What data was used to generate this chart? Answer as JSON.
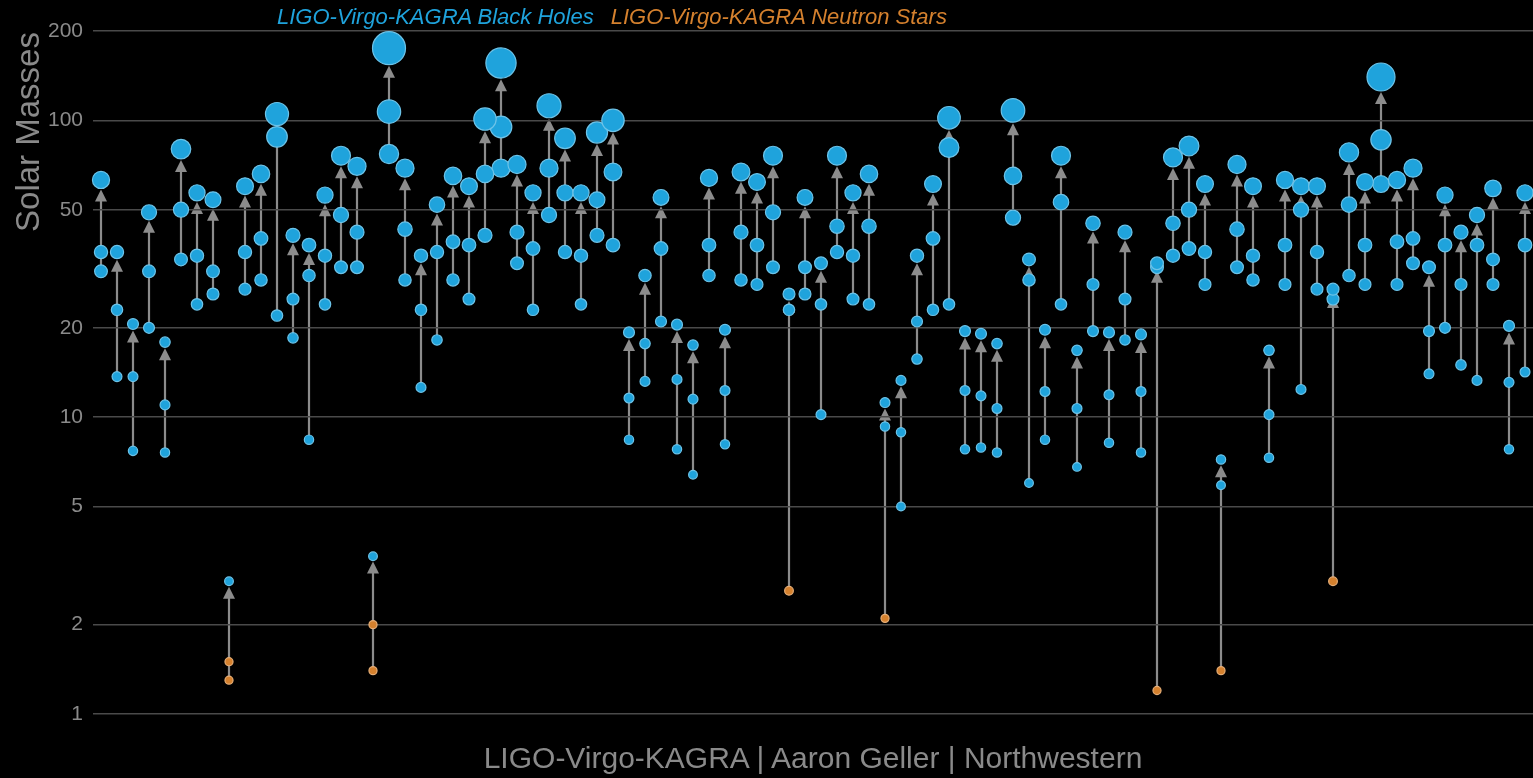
{
  "chart_data": {
    "type": "bubble",
    "ylabel": "Solar Masses",
    "annotations": [
      "LIGO-Virgo-KAGRA | Aaron Geller | Northwestern"
    ],
    "categories": [
      null,
      null,
      null,
      null,
      null,
      null,
      null,
      null,
      null,
      null,
      null,
      null,
      null,
      null,
      null,
      null,
      null,
      null,
      null,
      null,
      null,
      null,
      null,
      null,
      null,
      null,
      null,
      null,
      null,
      null,
      null,
      null,
      null,
      null,
      null,
      null,
      null,
      null,
      null,
      null,
      null,
      null,
      null,
      null,
      null,
      null,
      null,
      null,
      null,
      null,
      null,
      null,
      null,
      null,
      null,
      null,
      null,
      null,
      null,
      null,
      null,
      null,
      null,
      null,
      null,
      null,
      null,
      null,
      null,
      null,
      null,
      null,
      null,
      null,
      null,
      null,
      null,
      null,
      null,
      null,
      null,
      null,
      null,
      null,
      null,
      null,
      null,
      null,
      null,
      null
    ],
    "ylim": [
      1,
      200
    ],
    "yticks": [
      1,
      2,
      5,
      10,
      20,
      50,
      100,
      200
    ],
    "log": "y",
    "grid": "y",
    "legend": "top",
    "tick_labels": "y",
    "marker": "circle",
    "series": [
      {
        "name": "LIGO-Virgo-KAGRA Black Holes",
        "color": "#1fa3dc",
        "values": [
          63,
          36,
          20.6,
          49,
          17.9,
          80,
          57,
          54,
          2.8,
          60,
          66,
          105,
          41,
          38,
          56,
          76,
          70,
          3.4,
          175,
          69,
          35,
          52,
          65,
          60,
          101,
          156,
          71,
          57,
          112,
          87,
          57,
          91,
          100,
          19.3,
          30,
          55,
          20.5,
          17.5,
          64,
          19.7,
          67,
          62,
          76,
          26,
          55,
          33,
          76,
          57,
          66,
          11.2,
          13.3,
          35,
          61,
          102,
          19.5,
          19.1,
          17.7,
          108,
          34,
          19.7,
          76,
          16.8,
          45,
          19.3,
          42,
          19.0,
          33,
          75,
          82,
          61,
          7.2,
          71,
          60,
          16.8,
          63,
          60,
          60,
          27,
          78,
          62,
          140,
          63,
          69,
          32,
          56,
          42,
          48,
          59,
          20.3,
          57
        ],
        "sizes": [
          0.27,
          0.16,
          0.11,
          0.21,
          0.1,
          0.35,
          0.24,
          0.23,
          0.07,
          0.26,
          0.28,
          0.49,
          0.18,
          0.17,
          0.24,
          0.33,
          0.3,
          0.07,
          1,
          0.3,
          0.16,
          0.22,
          0.28,
          0.26,
          0.46,
          0.84,
          0.3,
          0.24,
          0.53,
          0.39,
          0.24,
          0.41,
          0.46,
          0.11,
          0.14,
          0.23,
          0.11,
          0.1,
          0.27,
          0.11,
          0.29,
          0.26,
          0.33,
          0.13,
          0.23,
          0.15,
          0.33,
          0.24,
          0.28,
          0.09,
          0.09,
          0.16,
          0.26,
          0.47,
          0.11,
          0.11,
          0.1,
          0.51,
          0.15,
          0.11,
          0.33,
          0.1,
          0.19,
          0.11,
          0.18,
          0.11,
          0.15,
          0.33,
          0.36,
          0.26,
          0.08,
          0.3,
          0.26,
          0.1,
          0.27,
          0.26,
          0.26,
          0.13,
          0.34,
          0.26,
          0.72,
          0.27,
          0.3,
          0.15,
          0.24,
          0.18,
          0.21,
          0.25,
          0.11,
          0.24
        ]
      },
      {
        "color": "#1fa3dc",
        "values": [
          36,
          23,
          13.7,
          31,
          11.0,
          50,
          35,
          31,
          null,
          36,
          40,
          88,
          25,
          30,
          35,
          48,
          42,
          null,
          107,
          43,
          23,
          36,
          39,
          38,
          66,
          95,
          42,
          37,
          69,
          57,
          35,
          54,
          67,
          11.6,
          17.7,
          37,
          13.4,
          11.5,
          38,
          12.3,
          42,
          38,
          49,
          23,
          32,
          24,
          44,
          35,
          44,
          9.3,
          8.9,
          21,
          40,
          81,
          12.3,
          11.8,
          10.7,
          65,
          29,
          12.2,
          53,
          10.7,
          28,
          11.9,
          25,
          12.2,
          32,
          45,
          50,
          36,
          5.9,
          43,
          35,
          10.2,
          38,
          50,
          36,
          25,
          52,
          38,
          86,
          39,
          40,
          19.5,
          38,
          28,
          38,
          34,
          13.1,
          38
        ],
        "sizes": [
          0.16,
          0.12,
          0.09,
          0.15,
          0.09,
          0.21,
          0.16,
          0.15,
          null,
          0.16,
          0.17,
          0.39,
          0.13,
          0.14,
          0.16,
          0.21,
          0.18,
          null,
          0.5,
          0.19,
          0.12,
          0.16,
          0.17,
          0.17,
          0.28,
          0.43,
          0.18,
          0.17,
          0.3,
          0.24,
          0.16,
          0.23,
          0.29,
          0.09,
          0.1,
          0.17,
          0.09,
          0.09,
          0.17,
          0.09,
          0.18,
          0.17,
          0.21,
          0.12,
          0.15,
          0.12,
          0.19,
          0.16,
          0.19,
          0.08,
          0.08,
          0.11,
          0.17,
          0.36,
          0.09,
          0.09,
          0.09,
          0.28,
          0.14,
          0.09,
          0.22,
          0.09,
          0.13,
          0.09,
          0.13,
          0.09,
          0.15,
          0.19,
          0.21,
          0.16,
          0.07,
          0.19,
          0.16,
          0.09,
          0.17,
          0.21,
          0.16,
          0.13,
          0.22,
          0.17,
          0.38,
          0.17,
          0.17,
          0.11,
          0.17,
          0.13,
          0.17,
          0.15,
          0.09,
          0.17
        ]
      },
      {
        "color": "#1fa3dc",
        "values": [
          31,
          13.7,
          7.7,
          20,
          7.6,
          34,
          24,
          26,
          null,
          27,
          29,
          22,
          18.5,
          8.4,
          24,
          32,
          32,
          null,
          77,
          29,
          12.6,
          18.2,
          29,
          25,
          41,
          69,
          33,
          23,
          48,
          36,
          24,
          41,
          38,
          8.4,
          13.2,
          21,
          7.8,
          6.4,
          30,
          8.1,
          29,
          28,
          32,
          null,
          26,
          10.2,
          36,
          25,
          24,
          null,
          5.0,
          15.7,
          23,
          24,
          7.8,
          7.9,
          7.6,
          47,
          6.0,
          8.4,
          24,
          6.8,
          19.5,
          8.2,
          18.2,
          7.6,
          null,
          35,
          37,
          28,
          null,
          32,
          29,
          7.3,
          28,
          12.4,
          27,
          null,
          30,
          28,
          61,
          28,
          33,
          14.0,
          20,
          15.0,
          13.3,
          28,
          7.8,
          14.2
        ],
        "sizes": [
          0.15,
          0.09,
          0.08,
          0.11,
          0.08,
          0.15,
          0.12,
          0.13,
          null,
          0.13,
          0.14,
          0.12,
          0.1,
          0.08,
          0.12,
          0.15,
          0.15,
          null,
          0.34,
          0.14,
          0.09,
          0.1,
          0.14,
          0.13,
          0.18,
          0.3,
          0.15,
          0.12,
          0.21,
          0.16,
          0.12,
          0.18,
          0.17,
          0.08,
          0.09,
          0.11,
          0.08,
          0.07,
          0.14,
          0.08,
          0.14,
          0.13,
          0.15,
          null,
          0.13,
          0.09,
          0.16,
          0.13,
          0.12,
          null,
          0.07,
          0.1,
          0.12,
          0.12,
          0.08,
          0.08,
          0.08,
          0.21,
          0.07,
          0.08,
          0.12,
          0.07,
          0.11,
          0.08,
          0.1,
          0.08,
          null,
          0.16,
          0.17,
          0.13,
          null,
          0.15,
          0.14,
          0.08,
          0.13,
          0.09,
          0.13,
          null,
          0.14,
          0.13,
          0.26,
          0.13,
          0.15,
          0.09,
          0.11,
          0.1,
          0.09,
          0.13,
          0.08,
          0.09
        ]
      },
      {
        "name": "LIGO-Virgo-KAGRA Neutron Stars",
        "color": "#d5812e",
        "values": [
          null,
          null,
          null,
          null,
          null,
          null,
          null,
          null,
          1.5,
          null,
          null,
          null,
          null,
          null,
          null,
          null,
          null,
          2.0,
          null,
          null,
          null,
          null,
          null,
          null,
          null,
          null,
          null,
          null,
          null,
          null,
          null,
          null,
          null,
          null,
          null,
          null,
          null,
          null,
          null,
          null,
          null,
          null,
          null,
          2.6,
          null,
          null,
          null,
          null,
          null,
          2.1,
          null,
          null,
          null,
          null,
          null,
          null,
          null,
          null,
          null,
          null,
          null,
          null,
          null,
          null,
          null,
          null,
          1.2,
          null,
          null,
          null,
          1.4,
          null,
          null,
          null,
          null,
          null,
          null,
          2.8,
          null,
          null,
          null,
          null,
          null,
          null,
          null,
          null,
          null,
          null,
          null,
          null
        ],
        "sizes": [
          null,
          null,
          null,
          null,
          null,
          null,
          null,
          null,
          0.06,
          null,
          null,
          null,
          null,
          null,
          null,
          null,
          null,
          0.06,
          null,
          null,
          null,
          null,
          null,
          null,
          null,
          null,
          null,
          null,
          null,
          null,
          null,
          null,
          null,
          null,
          null,
          null,
          null,
          null,
          null,
          null,
          null,
          null,
          null,
          0.07,
          null,
          null,
          null,
          null,
          null,
          0.06,
          null,
          null,
          null,
          null,
          null,
          null,
          null,
          null,
          null,
          null,
          null,
          null,
          null,
          null,
          null,
          null,
          0.06,
          null,
          null,
          null,
          0.06,
          null,
          null,
          null,
          null,
          null,
          null,
          0.07,
          null,
          null,
          null,
          null,
          null,
          null,
          null,
          null,
          null,
          null,
          null,
          null
        ]
      },
      {
        "color": "#d5812e",
        "values": [
          null,
          null,
          null,
          null,
          null,
          null,
          null,
          null,
          1.3,
          null,
          null,
          null,
          null,
          null,
          null,
          null,
          null,
          1.4,
          null,
          null,
          null,
          null,
          null,
          null,
          null,
          null,
          null,
          null,
          null,
          null,
          null,
          null,
          null,
          null,
          null,
          null,
          null,
          null,
          null,
          null,
          null,
          null,
          null,
          null,
          null,
          null,
          null,
          null,
          null,
          null,
          null,
          null,
          null,
          null,
          null,
          null,
          null,
          null,
          null,
          null,
          null,
          null,
          null,
          null,
          null,
          null,
          null,
          null,
          null,
          null,
          null,
          null,
          null,
          null,
          null,
          null,
          null,
          null,
          null,
          null,
          null,
          null,
          null,
          null,
          null,
          null,
          null,
          null,
          null,
          null
        ],
        "sizes": [
          null,
          null,
          null,
          null,
          null,
          null,
          null,
          null,
          0.06,
          null,
          null,
          null,
          null,
          null,
          null,
          null,
          null,
          0.06,
          null,
          null,
          null,
          null,
          null,
          null,
          null,
          null,
          null,
          null,
          null,
          null,
          null,
          null,
          null,
          null,
          null,
          null,
          null,
          null,
          null,
          null,
          null,
          null,
          null,
          null,
          null,
          null,
          null,
          null,
          null,
          null,
          null,
          null,
          null,
          null,
          null,
          null,
          null,
          null,
          null,
          null,
          null,
          null,
          null,
          null,
          null,
          null,
          null,
          null,
          null,
          null,
          null,
          null,
          null,
          null,
          null,
          null,
          null,
          null,
          null,
          null,
          null,
          null,
          null,
          null,
          null,
          null,
          null,
          null,
          null,
          null
        ]
      }
    ]
  }
}
